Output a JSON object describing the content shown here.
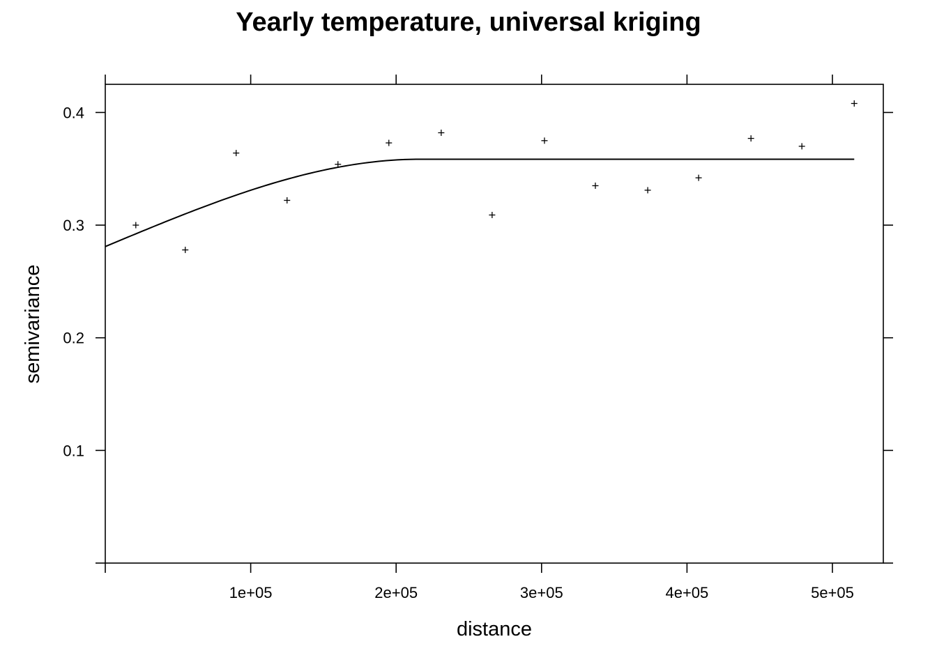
{
  "chart_data": {
    "type": "scatter",
    "title": "Yearly temperature, universal kriging",
    "xlabel": "distance",
    "ylabel": "semivariance",
    "xlim": [
      0,
      535000
    ],
    "ylim": [
      0,
      0.425
    ],
    "xticks": [
      {
        "value": 0,
        "label": ""
      },
      {
        "value": 100000,
        "label": "1e+05"
      },
      {
        "value": 200000,
        "label": "2e+05"
      },
      {
        "value": 300000,
        "label": "3e+05"
      },
      {
        "value": 400000,
        "label": "4e+05"
      },
      {
        "value": 500000,
        "label": "5e+05"
      }
    ],
    "yticks": [
      {
        "value": 0,
        "label": ""
      },
      {
        "value": 0.1,
        "label": "0.1"
      },
      {
        "value": 0.2,
        "label": "0.2"
      },
      {
        "value": 0.3,
        "label": "0.3"
      },
      {
        "value": 0.4,
        "label": "0.4"
      }
    ],
    "grid": false,
    "points": {
      "x": [
        21000,
        55000,
        90000,
        125000,
        160000,
        195000,
        231000,
        266000,
        302000,
        337000,
        373000,
        408000,
        444000,
        479000,
        515000
      ],
      "y": [
        0.3,
        0.278,
        0.364,
        0.322,
        0.354,
        0.373,
        0.382,
        0.309,
        0.375,
        0.335,
        0.331,
        0.342,
        0.377,
        0.37,
        0.408
      ]
    },
    "model_curve": {
      "model": "spherical",
      "nugget": 0.281,
      "psill": 0.0775,
      "range": 216000,
      "x_max": 515000
    }
  }
}
